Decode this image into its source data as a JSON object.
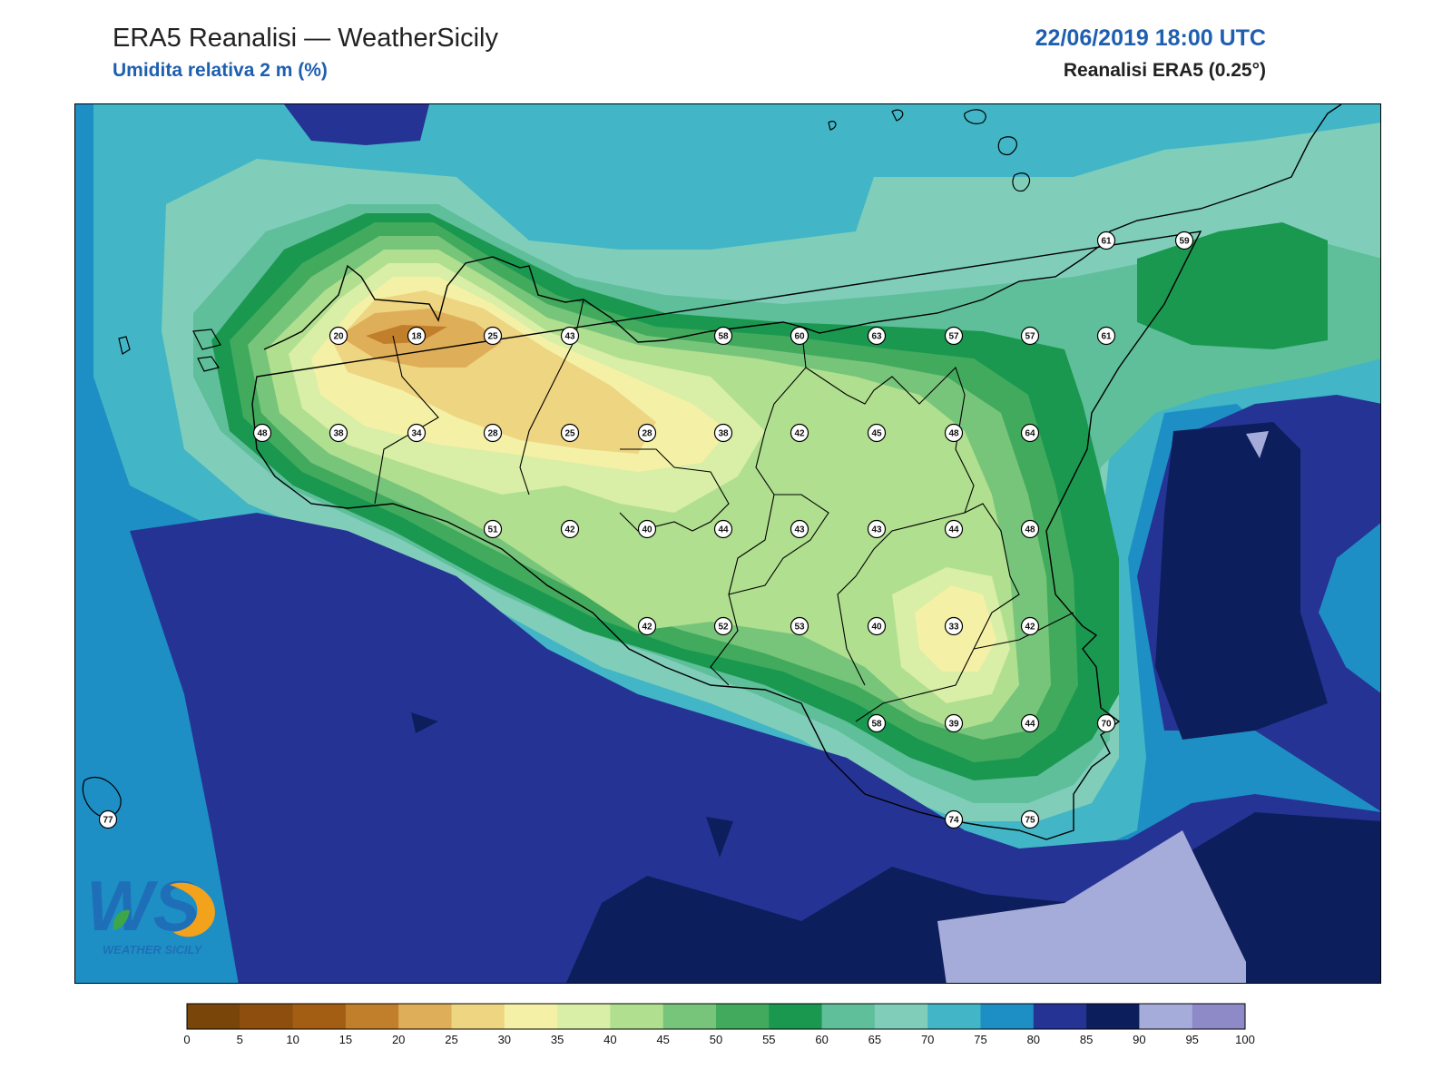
{
  "header": {
    "title": "ERA5 Reanalisi — WeatherSicily",
    "subtitle": "Umidita relativa 2 m (%)",
    "datetime": "22/06/2019 18:00 UTC",
    "source": "Reanalisi ERA5 (0.25°)"
  },
  "map": {
    "variable": "relative_humidity_2m",
    "stations": [
      {
        "value": "61"
      },
      {
        "value": "59"
      },
      {
        "value": "20"
      },
      {
        "value": "18"
      },
      {
        "value": "25"
      },
      {
        "value": "43"
      },
      {
        "value": "58"
      },
      {
        "value": "60"
      },
      {
        "value": "63"
      },
      {
        "value": "57"
      },
      {
        "value": "57"
      },
      {
        "value": "61"
      },
      {
        "value": "48"
      },
      {
        "value": "38"
      },
      {
        "value": "34"
      },
      {
        "value": "28"
      },
      {
        "value": "25"
      },
      {
        "value": "28"
      },
      {
        "value": "38"
      },
      {
        "value": "42"
      },
      {
        "value": "45"
      },
      {
        "value": "48"
      },
      {
        "value": "64"
      },
      {
        "value": "51"
      },
      {
        "value": "42"
      },
      {
        "value": "40"
      },
      {
        "value": "44"
      },
      {
        "value": "43"
      },
      {
        "value": "43"
      },
      {
        "value": "44"
      },
      {
        "value": "48"
      },
      {
        "value": "42"
      },
      {
        "value": "52"
      },
      {
        "value": "53"
      },
      {
        "value": "40"
      },
      {
        "value": "33"
      },
      {
        "value": "42"
      },
      {
        "value": "58"
      },
      {
        "value": "39"
      },
      {
        "value": "44"
      },
      {
        "value": "70"
      },
      {
        "value": "74"
      },
      {
        "value": "75"
      },
      {
        "value": "77"
      }
    ]
  },
  "colorbar": {
    "ticks": [
      "0",
      "5",
      "10",
      "15",
      "20",
      "25",
      "30",
      "35",
      "40",
      "45",
      "50",
      "55",
      "60",
      "65",
      "70",
      "75",
      "80",
      "85",
      "90",
      "95",
      "100"
    ],
    "colors": [
      "#7a4508",
      "#8e4f0e",
      "#a45e14",
      "#c27f2b",
      "#dfae59",
      "#eed582",
      "#f4f1a6",
      "#d9eea6",
      "#b0df8f",
      "#77c57a",
      "#42aa5d",
      "#1a9850",
      "#5fbf9a",
      "#80ceba",
      "#42b6c6",
      "#1e8fc4",
      "#253494",
      "#0d1e5c",
      "#a6acd9",
      "#8e8ac8"
    ]
  },
  "logo": {
    "text": "WS",
    "caption": "WEATHER SICILY"
  }
}
